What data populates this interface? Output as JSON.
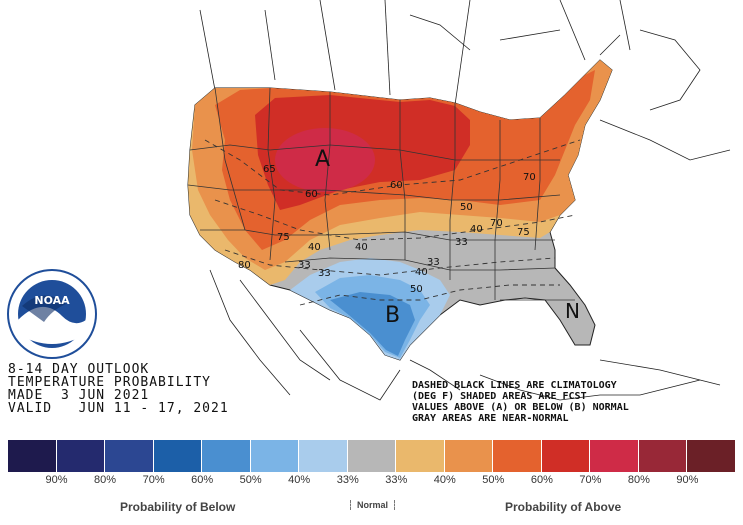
{
  "title": {
    "line1": "8-14 DAY OUTLOOK",
    "line2": "TEMPERATURE PROBABILITY",
    "line3": "MADE  3 JUN 2021",
    "line4": "VALID   JUN 11 - 17, 2021"
  },
  "notes": {
    "line1": "DASHED BLACK LINES ARE CLIMATOLOGY",
    "line2": "(DEG F) SHADED AREAS ARE FCST",
    "line3": "VALUES ABOVE (A) OR BELOW (B) NORMAL",
    "line4": "GRAY AREAS ARE NEAR-NORMAL"
  },
  "logo": {
    "text": "NOAA",
    "icon": "noaa-logo-icon"
  },
  "map_labels": {
    "above": "A",
    "below": "B",
    "normal": "N",
    "contour_60a": "60",
    "contour_60b": "60",
    "contour_65": "65",
    "contour_75a": "75",
    "contour_75b": "75",
    "contour_40a": "40",
    "contour_40b": "40",
    "contour_40c": "40",
    "contour_40d": "40",
    "contour_50a": "50",
    "contour_50b": "50",
    "contour_33a": "33",
    "contour_33b": "33",
    "contour_33c": "33",
    "contour_33d": "33",
    "contour_70": "70",
    "contour_70b": "70",
    "contour_80": "80"
  },
  "legend": {
    "colors": [
      "#1e1a4d",
      "#242a6e",
      "#2c4792",
      "#1c5fa8",
      "#4a8fd0",
      "#7bb4e6",
      "#a9ccec",
      "#b7b7b7",
      "#eab86c",
      "#e9924c",
      "#e4622e",
      "#d02e26",
      "#cf2b47",
      "#982837",
      "#6b2027"
    ],
    "ticks": [
      "90%",
      "80%",
      "70%",
      "60%",
      "50%",
      "40%",
      "33%",
      "33%",
      "40%",
      "50%",
      "60%",
      "70%",
      "80%",
      "90%"
    ],
    "below_caption": "Probability of Below",
    "normal_caption": "Normal",
    "above_caption": "Probability of Above"
  }
}
